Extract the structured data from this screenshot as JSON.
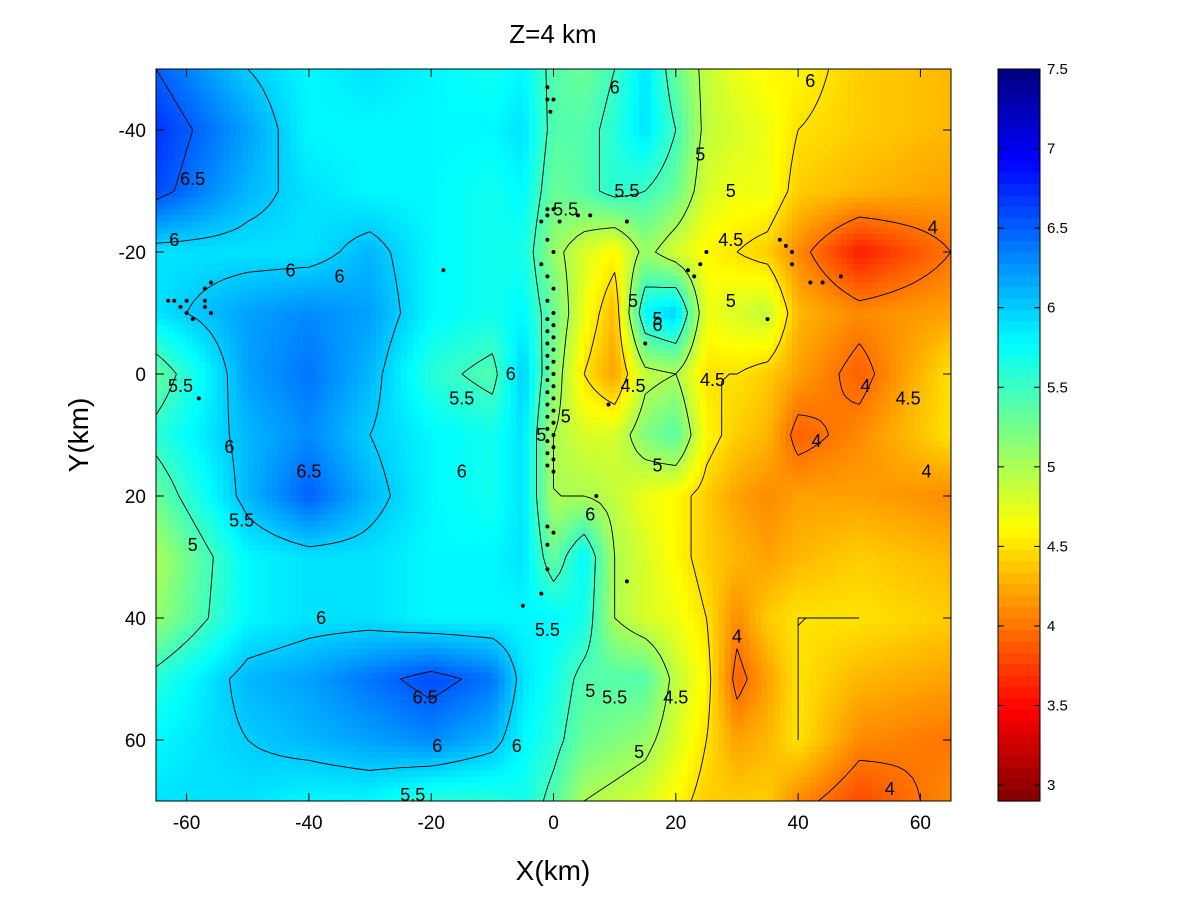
{
  "chart_data": {
    "type": "heatmap",
    "title": "Z=4 km",
    "xlabel": "X(km)",
    "ylabel": "Y(km)",
    "xlim": [
      -65,
      65
    ],
    "ylim": [
      -50,
      70
    ],
    "y_axis_reversed": true,
    "xticks": [
      -60,
      -40,
      -20,
      0,
      20,
      40,
      60
    ],
    "yticks": [
      -40,
      -20,
      0,
      20,
      40,
      60
    ],
    "colorbar": {
      "colormap": "jet",
      "range": [
        2.9,
        7.5
      ],
      "ticks": [
        3,
        3.5,
        4,
        4.5,
        5,
        5.5,
        6,
        6.5,
        7,
        7.5
      ]
    },
    "grid_x": [
      -65,
      -50,
      -40,
      -30,
      -20,
      -10,
      -5,
      0,
      5,
      10,
      15,
      20,
      25,
      30,
      35,
      40,
      50,
      65
    ],
    "grid_y": [
      -50,
      -40,
      -30,
      -20,
      -10,
      0,
      10,
      20,
      30,
      40,
      50,
      60,
      70
    ],
    "values": [
      [
        6.5,
        6.0,
        5.8,
        5.9,
        5.8,
        5.7,
        5.8,
        5.4,
        5.3,
        5.5,
        5.9,
        5.3,
        4.9,
        4.7,
        4.6,
        4.6,
        4.4,
        4.3
      ],
      [
        6.7,
        6.2,
        5.8,
        5.8,
        5.8,
        5.8,
        5.9,
        5.4,
        5.4,
        5.6,
        5.9,
        5.5,
        4.9,
        4.8,
        4.7,
        4.5,
        4.4,
        4.3
      ],
      [
        6.6,
        6.1,
        5.9,
        5.8,
        5.8,
        5.7,
        5.8,
        5.3,
        5.4,
        5.6,
        5.5,
        5.3,
        4.8,
        4.7,
        4.7,
        4.4,
        4.3,
        4.2
      ],
      [
        5.9,
        5.9,
        5.9,
        6.1,
        5.8,
        5.7,
        5.7,
        5.1,
        4.8,
        4.6,
        5.1,
        4.8,
        4.6,
        4.5,
        4.4,
        4.1,
        3.6,
        4.0
      ],
      [
        5.9,
        6.2,
        6.3,
        6.2,
        5.8,
        5.7,
        5.8,
        5.3,
        4.7,
        4.3,
        5.8,
        6.0,
        4.7,
        4.8,
        4.9,
        4.3,
        4.1,
        4.2
      ],
      [
        5.3,
        6.2,
        6.4,
        6.1,
        5.6,
        5.4,
        6.0,
        5.2,
        4.5,
        4.2,
        4.9,
        5.0,
        4.5,
        4.5,
        4.4,
        4.2,
        3.9,
        4.5
      ],
      [
        5.6,
        6.1,
        6.3,
        6.0,
        5.8,
        5.7,
        5.9,
        5.0,
        4.8,
        4.8,
        5.2,
        5.4,
        4.6,
        4.4,
        4.3,
        3.9,
        4.1,
        4.5
      ],
      [
        5.3,
        6.1,
        6.5,
        6.1,
        5.8,
        5.7,
        5.9,
        5.0,
        5.0,
        4.9,
        4.7,
        4.6,
        4.4,
        4.2,
        4.1,
        4.2,
        4.2,
        4.1
      ],
      [
        5.0,
        5.8,
        5.9,
        5.9,
        5.8,
        5.8,
        5.9,
        5.3,
        5.8,
        5.0,
        4.8,
        4.6,
        4.4,
        4.3,
        4.2,
        4.3,
        4.4,
        4.3
      ],
      [
        5.1,
        5.8,
        5.9,
        5.9,
        5.8,
        5.8,
        5.8,
        5.8,
        5.7,
        5.0,
        4.8,
        4.7,
        4.5,
        4.1,
        4.4,
        4.5,
        4.5,
        4.4
      ],
      [
        5.6,
        6.1,
        6.2,
        6.4,
        6.6,
        6.4,
        5.9,
        5.7,
        5.4,
        5.4,
        5.4,
        4.9,
        4.6,
        3.9,
        4.2,
        4.5,
        4.3,
        4.2
      ],
      [
        5.8,
        6.0,
        6.1,
        6.2,
        6.3,
        6.1,
        5.8,
        5.6,
        5.3,
        5.2,
        5.1,
        4.8,
        4.5,
        4.2,
        4.3,
        4.5,
        4.1,
        4.0
      ],
      [
        5.9,
        5.9,
        5.8,
        5.8,
        5.6,
        5.6,
        5.7,
        5.4,
        5.0,
        4.9,
        4.8,
        4.6,
        4.4,
        4.4,
        4.4,
        4.1,
        3.8,
        4.1
      ]
    ],
    "contour_levels": [
      4,
      4.5,
      5,
      5.5,
      6,
      6.5
    ],
    "contour_labels": [
      {
        "text": "6.5",
        "x": -59,
        "y": -32
      },
      {
        "text": "6",
        "x": -62,
        "y": -22
      },
      {
        "text": "6",
        "x": 42,
        "y": -48
      },
      {
        "text": "6",
        "x": -43,
        "y": -17
      },
      {
        "text": "6",
        "x": -35,
        "y": -16
      },
      {
        "text": "6",
        "x": 10,
        "y": -47
      },
      {
        "text": "5.5",
        "x": -61,
        "y": 2
      },
      {
        "text": "5.5",
        "x": -15,
        "y": 4
      },
      {
        "text": "6",
        "x": -7,
        "y": 0
      },
      {
        "text": "6",
        "x": -53,
        "y": 12
      },
      {
        "text": "6.5",
        "x": -40,
        "y": 16
      },
      {
        "text": "6",
        "x": -15,
        "y": 16
      },
      {
        "text": "5",
        "x": -59,
        "y": 28
      },
      {
        "text": "5.5",
        "x": -51,
        "y": 24
      },
      {
        "text": "6",
        "x": -38,
        "y": 40
      },
      {
        "text": "6.5",
        "x": -21,
        "y": 53
      },
      {
        "text": "6",
        "x": -19,
        "y": 61
      },
      {
        "text": "5.5",
        "x": -23,
        "y": 69
      },
      {
        "text": "6",
        "x": -6,
        "y": 61
      },
      {
        "text": "5.5",
        "x": 2,
        "y": -27
      },
      {
        "text": "5.5",
        "x": 12,
        "y": -30
      },
      {
        "text": "5",
        "x": 24,
        "y": -36
      },
      {
        "text": "5",
        "x": 29,
        "y": -30
      },
      {
        "text": "4.5",
        "x": 29,
        "y": -22
      },
      {
        "text": "4",
        "x": 62,
        "y": -24
      },
      {
        "text": "5",
        "x": 29,
        "y": -12
      },
      {
        "text": "5",
        "x": 13,
        "y": -12
      },
      {
        "text": "5",
        "x": 17,
        "y": -9
      },
      {
        "text": "6",
        "x": 17,
        "y": -8
      },
      {
        "text": "4.5",
        "x": 13,
        "y": 2
      },
      {
        "text": "4.5",
        "x": 26,
        "y": 1
      },
      {
        "text": "4",
        "x": 51,
        "y": 2
      },
      {
        "text": "4.5",
        "x": 58,
        "y": 4
      },
      {
        "text": "4",
        "x": 43,
        "y": 11
      },
      {
        "text": "4",
        "x": 61,
        "y": 16
      },
      {
        "text": "5",
        "x": 2,
        "y": 7
      },
      {
        "text": "5",
        "x": -2,
        "y": 10
      },
      {
        "text": "5",
        "x": 17,
        "y": 15
      },
      {
        "text": "6",
        "x": 6,
        "y": 23
      },
      {
        "text": "5.5",
        "x": -1,
        "y": 42
      },
      {
        "text": "4",
        "x": 30,
        "y": 43
      },
      {
        "text": "5",
        "x": 6,
        "y": 52
      },
      {
        "text": "5.5",
        "x": 10,
        "y": 53
      },
      {
        "text": "4.5",
        "x": 20,
        "y": 53
      },
      {
        "text": "5",
        "x": 14,
        "y": 62
      },
      {
        "text": "4",
        "x": 55,
        "y": 68
      }
    ],
    "earthquakes": [
      [
        -1,
        -47
      ],
      [
        -1,
        -45
      ],
      [
        -0.5,
        -43
      ],
      [
        0,
        -45
      ],
      [
        -1,
        -27
      ],
      [
        0,
        -27
      ],
      [
        -1,
        -26
      ],
      [
        -2,
        -25
      ],
      [
        1,
        -25
      ],
      [
        4,
        -26
      ],
      [
        6,
        -26
      ],
      [
        12,
        -25
      ],
      [
        -1,
        -22
      ],
      [
        0,
        -20
      ],
      [
        -2,
        -18
      ],
      [
        -1,
        -16
      ],
      [
        0,
        -14
      ],
      [
        -1,
        -12
      ],
      [
        0,
        -10
      ],
      [
        -1,
        -9
      ],
      [
        0,
        -8
      ],
      [
        -1,
        -7
      ],
      [
        0,
        -6
      ],
      [
        -1,
        -5
      ],
      [
        0,
        -4
      ],
      [
        -1,
        -3
      ],
      [
        0,
        -2
      ],
      [
        -1,
        -1
      ],
      [
        0,
        0
      ],
      [
        -1,
        1
      ],
      [
        0,
        2
      ],
      [
        -1,
        3
      ],
      [
        0,
        4
      ],
      [
        -1,
        5
      ],
      [
        0,
        6
      ],
      [
        -1,
        7
      ],
      [
        0,
        8
      ],
      [
        -1,
        9
      ],
      [
        0,
        10
      ],
      [
        -1,
        11
      ],
      [
        0,
        12
      ],
      [
        -1,
        13
      ],
      [
        0,
        14
      ],
      [
        -1,
        15
      ],
      [
        0,
        16
      ],
      [
        -1,
        25
      ],
      [
        0,
        26
      ],
      [
        -1,
        28
      ],
      [
        -1,
        32
      ],
      [
        -2,
        36
      ],
      [
        -5,
        38
      ],
      [
        7,
        20
      ],
      [
        12,
        34
      ],
      [
        22,
        -17
      ],
      [
        23,
        -16
      ],
      [
        24,
        -18
      ],
      [
        25,
        -20
      ],
      [
        37,
        -22
      ],
      [
        38,
        -21
      ],
      [
        39,
        -20
      ],
      [
        39,
        -18
      ],
      [
        35,
        -9
      ],
      [
        -63,
        -12
      ],
      [
        -62,
        -12
      ],
      [
        -61,
        -11
      ],
      [
        -60,
        -12
      ],
      [
        -60,
        -10
      ],
      [
        -59,
        -9
      ],
      [
        -57,
        -12
      ],
      [
        -57,
        -11
      ],
      [
        -56,
        -10
      ],
      [
        -57,
        -14
      ],
      [
        -56,
        -15
      ],
      [
        -58,
        4
      ],
      [
        -18,
        -17
      ],
      [
        42,
        -15
      ],
      [
        44,
        -15
      ],
      [
        47,
        -16
      ],
      [
        9,
        5
      ],
      [
        15,
        -5
      ]
    ]
  }
}
